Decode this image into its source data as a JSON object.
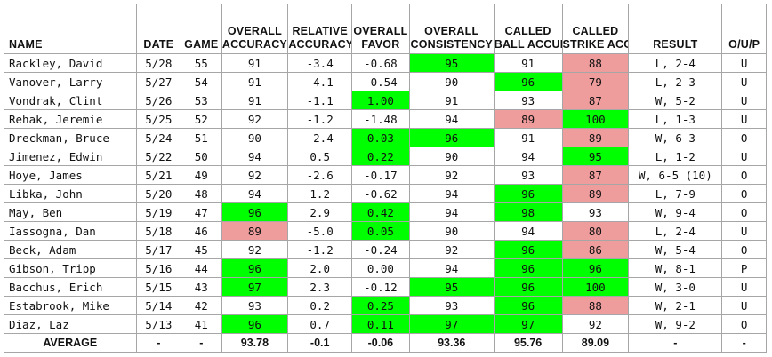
{
  "columns": [
    {
      "key": "name",
      "label": "NAME"
    },
    {
      "key": "date",
      "label": "DATE"
    },
    {
      "key": "game",
      "label": "GAME"
    },
    {
      "key": "overall_accuracy",
      "label": "OVERALL ACCURACY"
    },
    {
      "key": "relative_accuracy",
      "label": "RELATIVE ACCURACY"
    },
    {
      "key": "overall_favor",
      "label": "OVERALL FAVOR"
    },
    {
      "key": "overall_consistency",
      "label": "OVERALL CONSISTENCY"
    },
    {
      "key": "called_ball_accuracy",
      "label": "CALLED BALL ACCURACY"
    },
    {
      "key": "called_strike_accuracy",
      "label": "CALLED STRIKE ACCURACY"
    },
    {
      "key": "result",
      "label": "RESULT"
    },
    {
      "key": "ou",
      "label": "O/U/P"
    }
  ],
  "colors": {
    "highlight_good": "#00ff00",
    "highlight_bad": "#ef9c9c",
    "border": "#a6a6a6"
  },
  "rows": [
    {
      "name": "Rackley, David",
      "date": "5/28",
      "game": "55",
      "overall_accuracy": "91",
      "relative_accuracy": "-3.4",
      "overall_favor": "-0.68",
      "overall_consistency": "95",
      "called_ball_accuracy": "91",
      "called_strike_accuracy": "88",
      "result": "L, 2-4",
      "ou": "U",
      "hl": {
        "overall_consistency": "g",
        "called_strike_accuracy": "r"
      }
    },
    {
      "name": "Vanover, Larry",
      "date": "5/27",
      "game": "54",
      "overall_accuracy": "91",
      "relative_accuracy": "-4.1",
      "overall_favor": "-0.54",
      "overall_consistency": "90",
      "called_ball_accuracy": "96",
      "called_strike_accuracy": "79",
      "result": "L, 2-3",
      "ou": "U",
      "hl": {
        "called_ball_accuracy": "g",
        "called_strike_accuracy": "r"
      }
    },
    {
      "name": "Vondrak, Clint",
      "date": "5/26",
      "game": "53",
      "overall_accuracy": "91",
      "relative_accuracy": "-1.1",
      "overall_favor": "1.00",
      "overall_consistency": "91",
      "called_ball_accuracy": "93",
      "called_strike_accuracy": "87",
      "result": "W, 5-2",
      "ou": "U",
      "hl": {
        "overall_favor": "g",
        "called_strike_accuracy": "r"
      }
    },
    {
      "name": "Rehak, Jeremie",
      "date": "5/25",
      "game": "52",
      "overall_accuracy": "92",
      "relative_accuracy": "-1.2",
      "overall_favor": "-1.48",
      "overall_consistency": "94",
      "called_ball_accuracy": "89",
      "called_strike_accuracy": "100",
      "result": "L, 1-3",
      "ou": "U",
      "hl": {
        "called_ball_accuracy": "r",
        "called_strike_accuracy": "g"
      }
    },
    {
      "name": "Dreckman, Bruce",
      "date": "5/24",
      "game": "51",
      "overall_accuracy": "90",
      "relative_accuracy": "-2.4",
      "overall_favor": "0.03",
      "overall_consistency": "96",
      "called_ball_accuracy": "91",
      "called_strike_accuracy": "89",
      "result": "W, 6-3",
      "ou": "O",
      "hl": {
        "overall_favor": "g",
        "overall_consistency": "g",
        "called_strike_accuracy": "r"
      }
    },
    {
      "name": "Jimenez, Edwin",
      "date": "5/22",
      "game": "50",
      "overall_accuracy": "94",
      "relative_accuracy": "0.5",
      "overall_favor": "0.22",
      "overall_consistency": "90",
      "called_ball_accuracy": "94",
      "called_strike_accuracy": "95",
      "result": "L, 1-2",
      "ou": "U",
      "hl": {
        "overall_favor": "g",
        "called_strike_accuracy": "g"
      }
    },
    {
      "name": "Hoye, James",
      "date": "5/21",
      "game": "49",
      "overall_accuracy": "92",
      "relative_accuracy": "-2.6",
      "overall_favor": "-0.17",
      "overall_consistency": "92",
      "called_ball_accuracy": "93",
      "called_strike_accuracy": "87",
      "result": "W, 6-5 (10)",
      "ou": "O",
      "hl": {
        "called_strike_accuracy": "r"
      }
    },
    {
      "name": "Libka, John",
      "date": "5/20",
      "game": "48",
      "overall_accuracy": "94",
      "relative_accuracy": "1.2",
      "overall_favor": "-0.62",
      "overall_consistency": "94",
      "called_ball_accuracy": "96",
      "called_strike_accuracy": "89",
      "result": "L, 7-9",
      "ou": "O",
      "hl": {
        "called_ball_accuracy": "g",
        "called_strike_accuracy": "r"
      }
    },
    {
      "name": "May, Ben",
      "date": "5/19",
      "game": "47",
      "overall_accuracy": "96",
      "relative_accuracy": "2.9",
      "overall_favor": "0.42",
      "overall_consistency": "94",
      "called_ball_accuracy": "98",
      "called_strike_accuracy": "93",
      "result": "W, 9-4",
      "ou": "O",
      "hl": {
        "overall_accuracy": "g",
        "overall_favor": "g",
        "called_ball_accuracy": "g"
      }
    },
    {
      "name": "Iassogna, Dan",
      "date": "5/18",
      "game": "46",
      "overall_accuracy": "89",
      "relative_accuracy": "-5.0",
      "overall_favor": "0.05",
      "overall_consistency": "90",
      "called_ball_accuracy": "94",
      "called_strike_accuracy": "80",
      "result": "L, 2-4",
      "ou": "U",
      "hl": {
        "overall_accuracy": "r",
        "overall_favor": "g",
        "called_strike_accuracy": "r"
      }
    },
    {
      "name": "Beck, Adam",
      "date": "5/17",
      "game": "45",
      "overall_accuracy": "92",
      "relative_accuracy": "-1.2",
      "overall_favor": "-0.24",
      "overall_consistency": "92",
      "called_ball_accuracy": "96",
      "called_strike_accuracy": "86",
      "result": "W, 5-4",
      "ou": "O",
      "hl": {
        "called_ball_accuracy": "g",
        "called_strike_accuracy": "r"
      }
    },
    {
      "name": "Gibson, Tripp",
      "date": "5/16",
      "game": "44",
      "overall_accuracy": "96",
      "relative_accuracy": "2.0",
      "overall_favor": "0.00",
      "overall_consistency": "94",
      "called_ball_accuracy": "96",
      "called_strike_accuracy": "96",
      "result": "W, 8-1",
      "ou": "P",
      "hl": {
        "overall_accuracy": "g",
        "called_ball_accuracy": "g",
        "called_strike_accuracy": "g"
      }
    },
    {
      "name": "Bacchus, Erich",
      "date": "5/15",
      "game": "43",
      "overall_accuracy": "97",
      "relative_accuracy": "2.3",
      "overall_favor": "-0.12",
      "overall_consistency": "95",
      "called_ball_accuracy": "96",
      "called_strike_accuracy": "100",
      "result": "W, 3-0",
      "ou": "U",
      "hl": {
        "overall_accuracy": "g",
        "overall_consistency": "g",
        "called_ball_accuracy": "g",
        "called_strike_accuracy": "g"
      }
    },
    {
      "name": "Estabrook, Mike",
      "date": "5/14",
      "game": "42",
      "overall_accuracy": "93",
      "relative_accuracy": "0.2",
      "overall_favor": "0.25",
      "overall_consistency": "93",
      "called_ball_accuracy": "96",
      "called_strike_accuracy": "88",
      "result": "W, 2-1",
      "ou": "U",
      "hl": {
        "overall_favor": "g",
        "called_ball_accuracy": "g",
        "called_strike_accuracy": "r"
      }
    },
    {
      "name": "Diaz, Laz",
      "date": "5/13",
      "game": "41",
      "overall_accuracy": "96",
      "relative_accuracy": "0.7",
      "overall_favor": "0.11",
      "overall_consistency": "97",
      "called_ball_accuracy": "97",
      "called_strike_accuracy": "92",
      "result": "W, 9-2",
      "ou": "O",
      "hl": {
        "overall_accuracy": "g",
        "overall_favor": "g",
        "overall_consistency": "g",
        "called_ball_accuracy": "g"
      }
    }
  ],
  "average": {
    "name": "AVERAGE",
    "date": "-",
    "game": "-",
    "overall_accuracy": "93.78",
    "relative_accuracy": "-0.1",
    "overall_favor": "-0.06",
    "overall_consistency": "93.36",
    "called_ball_accuracy": "95.76",
    "called_strike_accuracy": "89.09",
    "result": "-",
    "ou": "-"
  }
}
